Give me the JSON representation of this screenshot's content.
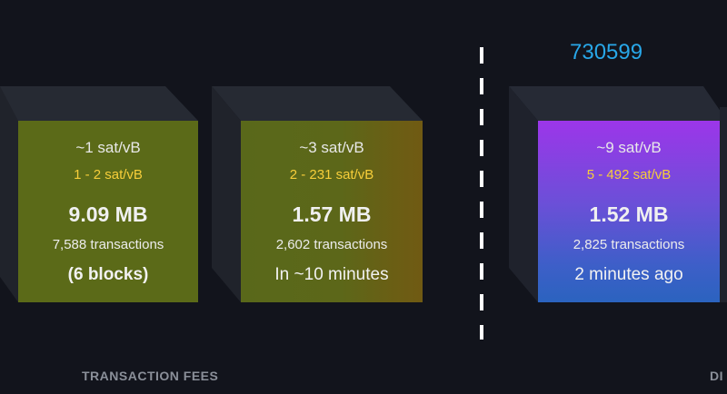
{
  "blocks": [
    {
      "median_fee": "~1 sat/vB",
      "fee_range": "1 - 2 sat/vB",
      "size": "9.09 MB",
      "transactions": "7,588 transactions",
      "eta": "(6 blocks)"
    },
    {
      "median_fee": "~3 sat/vB",
      "fee_range": "2 - 231 sat/vB",
      "size": "1.57 MB",
      "transactions": "2,602 transactions",
      "eta": "In ~10 minutes"
    },
    {
      "height": "730599",
      "median_fee": "~9 sat/vB",
      "fee_range": "5 - 492 sat/vB",
      "size": "1.52 MB",
      "transactions": "2,825 transactions",
      "eta": "2 minutes ago"
    }
  ],
  "labels": {
    "transaction_fees": "TRANSACTION FEES",
    "difficulty_partial": "DI"
  },
  "colors": {
    "background": "#12141c",
    "fee_range": "#f7ce3a",
    "block_height": "#28a7e8",
    "mempool_block": "#5b6a18",
    "mined_block_top": "#9c36e9",
    "mined_block_bottom": "#2b63bf"
  }
}
